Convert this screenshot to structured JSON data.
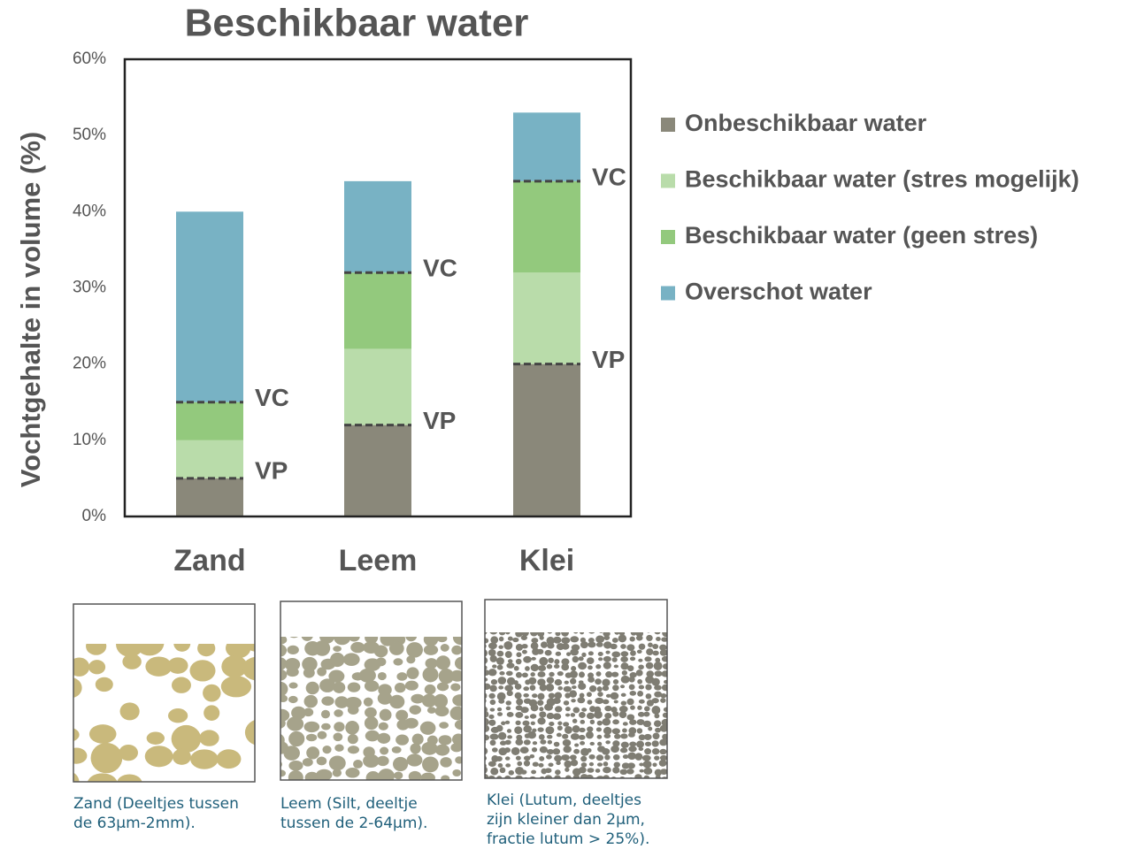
{
  "chart_data": {
    "type": "stacked_bar",
    "title": "Beschikbaar water",
    "y_label": "Vochtgehalte in volume (%)",
    "categories": [
      "Zand",
      "Leem",
      "Klei"
    ],
    "series": [
      {
        "name": "Onbeschikbaar water",
        "color": "#8a887a",
        "values": [
          5,
          12,
          20
        ]
      },
      {
        "name": "Beschikbaar water (stres mogelijk)",
        "color": "#b9dcaa",
        "values": [
          5,
          10,
          12
        ]
      },
      {
        "name": "Beschikbaar water (geen stres)",
        "color": "#93c97d",
        "values": [
          5,
          10,
          12
        ]
      },
      {
        "name": "Overschot water",
        "color": "#78b2c4",
        "values": [
          25,
          12,
          9
        ]
      }
    ],
    "ylim": [
      0,
      60
    ],
    "yticks": [
      {
        "value": 0,
        "label": "0%"
      },
      {
        "value": 10,
        "label": "10%"
      },
      {
        "value": 20,
        "label": "20%"
      },
      {
        "value": 30,
        "label": "30%"
      },
      {
        "value": 40,
        "label": "40%"
      },
      {
        "value": 50,
        "label": "50%"
      },
      {
        "value": 60,
        "label": "60%"
      }
    ],
    "annotations": {
      "vp": "VP",
      "vc": "VC"
    }
  },
  "soil_panels": [
    {
      "caption": [
        "Zand (Deeltjes tussen",
        "de 63µm-2mm)."
      ]
    },
    {
      "caption": [
        "Leem (Silt, deeltje",
        "tussen de 2-64µm)."
      ]
    },
    {
      "caption": [
        "Klei (Lutum, deeltjes",
        "zijn kleiner dan 2µm,",
        "fractie lutum > 25%)."
      ]
    }
  ]
}
